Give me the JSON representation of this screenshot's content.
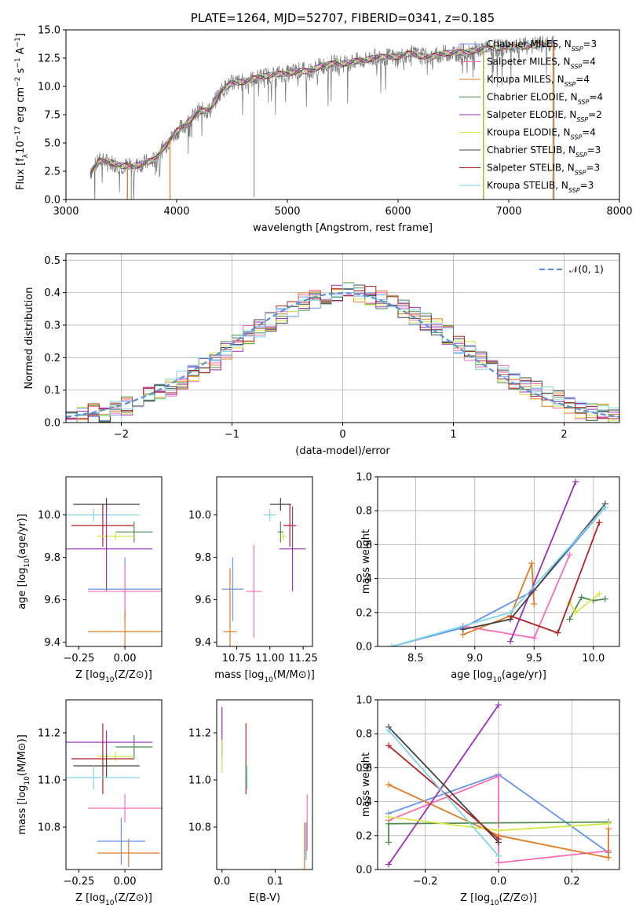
{
  "colors": {
    "Chabrier MILES": "#6495ed",
    "Salpeter MILES": "#ff69b4",
    "Kroupa MILES": "#e07b20",
    "Chabrier ELODIE": "#4f8a4f",
    "Salpeter ELODIE": "#9b30b8",
    "Kroupa ELODIE": "#d4e84a",
    "Chabrier STELIB": "#444444",
    "Salpeter STELIB": "#b22222",
    "Kroupa STELIB": "#7fd4e6"
  },
  "chart_data": [
    {
      "id": "spectrum",
      "type": "line",
      "title": "PLATE=1264, MJD=52707, FIBERID=0341, z=0.185",
      "xlabel": "wavelength [Angstrom, rest frame]",
      "ylabel": "Flux [f",
      "xlim": [
        3000,
        8000
      ],
      "ylim": [
        0,
        15
      ],
      "xticks": [
        "3000",
        "4000",
        "5000",
        "6000",
        "7000",
        "8000"
      ],
      "yticks": [
        "0.0",
        "2.5",
        "5.0",
        "7.5",
        "10.0",
        "12.5",
        "15.0"
      ],
      "legend_placement": "upper right",
      "legend": [
        {
          "label": "Chabrier MILES, N",
          "nssp": "=3",
          "model": "Chabrier MILES"
        },
        {
          "label": "Salpeter MILES, N",
          "nssp": "=4",
          "model": "Salpeter MILES"
        },
        {
          "label": "Kroupa MILES, N",
          "nssp": "=4",
          "model": "Kroupa MILES"
        },
        {
          "label": "Chabrier ELODIE, N",
          "nssp": "=4",
          "model": "Chabrier ELODIE"
        },
        {
          "label": "Salpeter ELODIE, N",
          "nssp": "=2",
          "model": "Salpeter ELODIE"
        },
        {
          "label": "Kroupa ELODIE, N",
          "nssp": "=4",
          "model": "Kroupa ELODIE"
        },
        {
          "label": "Chabrier STELIB, N",
          "nssp": "=3",
          "model": "Chabrier STELIB"
        },
        {
          "label": "Salpeter STELIB, N",
          "nssp": "=3",
          "model": "Salpeter STELIB"
        },
        {
          "label": "Kroupa STELIB, N",
          "nssp": "=3",
          "model": "Kroupa STELIB"
        }
      ],
      "data_color": "#808080",
      "continuum": [
        [
          3220,
          2.4
        ],
        [
          3300,
          3.4
        ],
        [
          3400,
          3.3
        ],
        [
          3500,
          3.0
        ],
        [
          3600,
          2.9
        ],
        [
          3700,
          3.2
        ],
        [
          3800,
          3.5
        ],
        [
          3900,
          4.8
        ],
        [
          4000,
          6.0
        ],
        [
          4100,
          6.8
        ],
        [
          4200,
          7.8
        ],
        [
          4300,
          7.9
        ],
        [
          4400,
          9.6
        ],
        [
          4500,
          10.3
        ],
        [
          4600,
          10.4
        ],
        [
          4700,
          10.7
        ],
        [
          4800,
          10.9
        ],
        [
          4900,
          11.1
        ],
        [
          5000,
          11.1
        ],
        [
          5100,
          11.4
        ],
        [
          5200,
          11.3
        ],
        [
          5300,
          11.8
        ],
        [
          5400,
          12.0
        ],
        [
          5500,
          12.0
        ],
        [
          5600,
          12.2
        ],
        [
          5700,
          12.3
        ],
        [
          5800,
          12.6
        ],
        [
          5900,
          12.6
        ],
        [
          6000,
          12.6
        ],
        [
          6100,
          12.9
        ],
        [
          6200,
          12.7
        ],
        [
          6300,
          12.6
        ],
        [
          6400,
          12.9
        ],
        [
          6500,
          13.0
        ],
        [
          6600,
          13.0
        ],
        [
          6700,
          13.2
        ],
        [
          6800,
          13.3
        ],
        [
          6900,
          13.4
        ],
        [
          7000,
          13.5
        ],
        [
          7100,
          13.5
        ],
        [
          7200,
          13.6
        ],
        [
          7300,
          13.7
        ],
        [
          7420,
          13.8
        ]
      ],
      "spikes": [
        [
          3555,
          0
        ],
        [
          3590,
          0
        ],
        [
          3940,
          0
        ],
        [
          4700,
          0.2
        ],
        [
          6770,
          0
        ],
        [
          7410,
          0
        ]
      ]
    },
    {
      "id": "residuals",
      "type": "histogram",
      "xlabel": "(data-model)/error",
      "ylabel": "Normed distribution",
      "xlim": [
        -2.5,
        2.5
      ],
      "ylim": [
        0,
        0.52
      ],
      "xticks": [
        "−2",
        "−1",
        "0",
        "1",
        "2"
      ],
      "yticks": [
        "0.0",
        "0.1",
        "0.2",
        "0.3",
        "0.4",
        "0.5"
      ],
      "bin_width": 0.1,
      "base": [
        0.02,
        0.02,
        0.03,
        0.03,
        0.04,
        0.05,
        0.07,
        0.08,
        0.1,
        0.11,
        0.13,
        0.15,
        0.17,
        0.19,
        0.22,
        0.24,
        0.27,
        0.29,
        0.31,
        0.33,
        0.35,
        0.37,
        0.38,
        0.39,
        0.4,
        0.41,
        0.4,
        0.39,
        0.38,
        0.37,
        0.35,
        0.33,
        0.31,
        0.29,
        0.27,
        0.24,
        0.22,
        0.19,
        0.17,
        0.15,
        0.13,
        0.11,
        0.1,
        0.08,
        0.07,
        0.05,
        0.04,
        0.03,
        0.03,
        0.02
      ],
      "gaussian_label": "N(0,1)",
      "gaussian_color": "#5b8fd6",
      "legend_placement": "upper right"
    },
    {
      "id": "age_vs_Z",
      "type": "errorbar",
      "xlabel": "Z [log",
      "ylabel": "age  [log",
      "xlim": [
        -0.32,
        0.2
      ],
      "ylim": [
        9.38,
        10.18
      ],
      "xticks": [
        "−0.25",
        "0.00"
      ],
      "yticks": [
        "9.4",
        "9.6",
        "9.8",
        "10.0"
      ],
      "points": [
        {
          "model": "Chabrier STELIB",
          "x": -0.1,
          "xerr": 0.18,
          "y": 10.05,
          "yerr": 0.03
        },
        {
          "model": "Kroupa STELIB",
          "x": -0.17,
          "xerr": 0.25,
          "y": 10.0,
          "yerr": 0.03
        },
        {
          "model": "Salpeter STELIB",
          "x": -0.12,
          "xerr": 0.17,
          "y": 9.95,
          "yerr": 0.1
        },
        {
          "model": "Chabrier ELODIE",
          "x": 0.05,
          "xerr": 0.1,
          "y": 9.92,
          "yerr": 0.05
        },
        {
          "model": "Kroupa ELODIE",
          "x": -0.05,
          "xerr": 0.1,
          "y": 9.9,
          "yerr": 0.02
        },
        {
          "model": "Salpeter ELODIE",
          "x": -0.1,
          "xerr": 0.25,
          "y": 9.84,
          "yerr": 0.2
        },
        {
          "model": "Chabrier MILES",
          "x": 0.0,
          "xerr": 0.2,
          "y": 9.65,
          "yerr": 0.15
        },
        {
          "model": "Salpeter MILES",
          "x": 0.0,
          "xerr": 0.2,
          "y": 9.64,
          "yerr": 0.12
        },
        {
          "model": "Kroupa MILES",
          "x": 0.0,
          "xerr": 0.2,
          "y": 9.45,
          "yerr": 0.1
        }
      ]
    },
    {
      "id": "age_vs_mass",
      "type": "errorbar",
      "xlabel": "mass [log",
      "ylabel": "",
      "xlim": [
        10.6,
        11.32
      ],
      "ylim": [
        9.38,
        10.18
      ],
      "xticks": [
        "10.75",
        "11.00",
        "11.25"
      ],
      "yticks": [
        "9.4",
        "9.6",
        "9.8",
        "10.0"
      ],
      "points": [
        {
          "model": "Chabrier STELIB",
          "x": 11.08,
          "xerr": 0.08,
          "y": 10.05,
          "yerr": 0.03
        },
        {
          "model": "Kroupa STELIB",
          "x": 11.0,
          "xerr": 0.05,
          "y": 10.0,
          "yerr": 0.03
        },
        {
          "model": "Salpeter STELIB",
          "x": 11.15,
          "xerr": 0.05,
          "y": 9.95,
          "yerr": 0.1
        },
        {
          "model": "Chabrier ELODIE",
          "x": 11.08,
          "xerr": 0.02,
          "y": 9.92,
          "yerr": 0.05
        },
        {
          "model": "Kroupa ELODIE",
          "x": 11.1,
          "xerr": 0.02,
          "y": 9.9,
          "yerr": 0.02
        },
        {
          "model": "Salpeter ELODIE",
          "x": 11.17,
          "xerr": 0.1,
          "y": 9.84,
          "yerr": 0.2
        },
        {
          "model": "Chabrier MILES",
          "x": 10.72,
          "xerr": 0.08,
          "y": 9.65,
          "yerr": 0.15
        },
        {
          "model": "Salpeter MILES",
          "x": 10.88,
          "xerr": 0.06,
          "y": 9.64,
          "yerr": 0.22
        },
        {
          "model": "Kroupa MILES",
          "x": 10.7,
          "xerr": 0.05,
          "y": 9.45,
          "yerr": 0.3
        }
      ]
    },
    {
      "id": "weight_vs_age",
      "type": "line",
      "xlabel": "age  [log",
      "ylabel": "mass weight",
      "xlim": [
        8.18,
        10.22
      ],
      "ylim": [
        0,
        1
      ],
      "xticks": [
        "8.5",
        "9.0",
        "9.5",
        "10.0"
      ],
      "yticks": [
        "0.0",
        "0.2",
        "0.4",
        "0.6",
        "0.8",
        "1.0"
      ],
      "series": [
        {
          "model": "Chabrier MILES",
          "points": [
            [
              8.3,
              0.0
            ],
            [
              8.9,
              0.11
            ],
            [
              9.5,
              0.33
            ],
            [
              10.1,
              0.82
            ]
          ]
        },
        {
          "model": "Salpeter MILES",
          "points": [
            [
              8.9,
              0.12
            ],
            [
              9.5,
              0.05
            ],
            [
              9.8,
              0.54
            ]
          ]
        },
        {
          "model": "Kroupa MILES",
          "points": [
            [
              8.9,
              0.07
            ],
            [
              9.3,
              0.18
            ],
            [
              9.48,
              0.49
            ],
            [
              9.5,
              0.25
            ]
          ]
        },
        {
          "model": "Chabrier ELODIE",
          "points": [
            [
              9.8,
              0.16
            ],
            [
              9.9,
              0.29
            ],
            [
              10.0,
              0.27
            ],
            [
              10.1,
              0.28
            ]
          ]
        },
        {
          "model": "Salpeter ELODIE",
          "points": [
            [
              9.3,
              0.03
            ],
            [
              9.85,
              0.97
            ]
          ]
        },
        {
          "model": "Kroupa ELODIE",
          "points": [
            [
              9.8,
              0.26
            ],
            [
              9.85,
              0.2
            ],
            [
              10.05,
              0.31
            ]
          ]
        },
        {
          "model": "Chabrier STELIB",
          "points": [
            [
              8.9,
              0.1
            ],
            [
              9.3,
              0.16
            ],
            [
              10.1,
              0.84
            ]
          ]
        },
        {
          "model": "Salpeter STELIB",
          "points": [
            [
              9.3,
              0.18
            ],
            [
              9.7,
              0.08
            ],
            [
              10.05,
              0.73
            ]
          ]
        },
        {
          "model": "Kroupa STELIB",
          "points": [
            [
              8.3,
              0.0
            ],
            [
              9.3,
              0.2
            ],
            [
              10.1,
              0.82
            ]
          ]
        }
      ]
    },
    {
      "id": "mass_vs_Z",
      "type": "errorbar",
      "xlabel": "Z [log",
      "ylabel": "mass [log",
      "xlim": [
        -0.32,
        0.2
      ],
      "ylim": [
        10.62,
        11.34
      ],
      "xticks": [
        "−0.25",
        "0.00"
      ],
      "yticks": [
        "10.8",
        "11.0",
        "11.2"
      ],
      "points": [
        {
          "model": "Salpeter ELODIE",
          "x": -0.1,
          "xerr": 0.25,
          "y": 11.16,
          "yerr": 0.05
        },
        {
          "model": "Chabrier ELODIE",
          "x": 0.05,
          "xerr": 0.1,
          "y": 11.14,
          "yerr": 0.05
        },
        {
          "model": "Kroupa ELODIE",
          "x": -0.05,
          "xerr": 0.1,
          "y": 11.1,
          "yerr": 0.02
        },
        {
          "model": "Salpeter STELIB",
          "x": -0.12,
          "xerr": 0.17,
          "y": 11.09,
          "yerr": 0.15
        },
        {
          "model": "Chabrier STELIB",
          "x": -0.1,
          "xerr": 0.18,
          "y": 11.06,
          "yerr": 0.05
        },
        {
          "model": "Kroupa STELIB",
          "x": -0.17,
          "xerr": 0.25,
          "y": 11.01,
          "yerr": 0.05
        },
        {
          "model": "Salpeter MILES",
          "x": 0.0,
          "xerr": 0.2,
          "y": 10.88,
          "yerr": 0.06
        },
        {
          "model": "Chabrier MILES",
          "x": -0.02,
          "xerr": 0.13,
          "y": 10.74,
          "yerr": 0.1
        },
        {
          "model": "Kroupa MILES",
          "x": 0.02,
          "xerr": 0.17,
          "y": 10.69,
          "yerr": 0.06
        }
      ]
    },
    {
      "id": "mass_vs_EBV",
      "type": "errorbar",
      "xlabel": "E(B-V)",
      "ylabel": "",
      "xlim": [
        -0.01,
        0.17
      ],
      "ylim": [
        10.62,
        11.34
      ],
      "xticks": [
        "0.0",
        "0.1"
      ],
      "yticks": [
        "10.8",
        "11.0",
        "11.2"
      ],
      "points": [
        {
          "model": "Salpeter ELODIE",
          "x": 0.0,
          "xerr": 0.0,
          "y": 11.2,
          "yerr": 0.11
        },
        {
          "model": "Kroupa ELODIE",
          "x": 0.0,
          "xerr": 0.0,
          "y": 11.1,
          "yerr": 0.07
        },
        {
          "model": "Salpeter STELIB",
          "x": 0.045,
          "xerr": 0.0,
          "y": 11.09,
          "yerr": 0.15
        },
        {
          "model": "Chabrier ELODIE",
          "x": 0.045,
          "xerr": 0.0,
          "y": 11.03,
          "yerr": 0.05
        },
        {
          "model": "Kroupa STELIB",
          "x": 0.047,
          "xerr": 0.0,
          "y": 11.01,
          "yerr": 0.05
        },
        {
          "model": "Kroupa MILES",
          "x": 0.155,
          "xerr": 0.0,
          "y": 10.72,
          "yerr": 0.1
        },
        {
          "model": "Salpeter MILES",
          "x": 0.16,
          "xerr": 0.0,
          "y": 10.82,
          "yerr": 0.12
        },
        {
          "model": "Chabrier MILES",
          "x": 0.158,
          "xerr": 0.0,
          "y": 10.74,
          "yerr": 0.08
        }
      ]
    },
    {
      "id": "weight_vs_Z",
      "type": "line",
      "xlabel": "Z [log",
      "ylabel": "mass weight",
      "xlim": [
        -0.33,
        0.33
      ],
      "ylim": [
        0,
        1
      ],
      "xticks": [
        "−0.2",
        "0.0",
        "0.2"
      ],
      "yticks": [
        "0.0",
        "0.2",
        "0.4",
        "0.6",
        "0.8",
        "1.0"
      ],
      "series": [
        {
          "model": "Chabrier MILES",
          "points": [
            [
              -0.3,
              0.33
            ],
            [
              0.0,
              0.56
            ],
            [
              0.3,
              0.1
            ]
          ]
        },
        {
          "model": "Salpeter MILES",
          "points": [
            [
              -0.3,
              0.29
            ],
            [
              0.0,
              0.55
            ],
            [
              0.0,
              0.04
            ],
            [
              0.3,
              0.11
            ]
          ]
        },
        {
          "model": "Kroupa MILES",
          "points": [
            [
              -0.3,
              0.5
            ],
            [
              0.0,
              0.2
            ],
            [
              0.3,
              0.07
            ],
            [
              0.3,
              0.24
            ]
          ]
        },
        {
          "model": "Chabrier ELODIE",
          "points": [
            [
              -0.3,
              0.16
            ],
            [
              -0.3,
              0.27
            ],
            [
              0.3,
              0.28
            ]
          ]
        },
        {
          "model": "Salpeter ELODIE",
          "points": [
            [
              -0.3,
              0.03
            ],
            [
              0.0,
              0.97
            ]
          ]
        },
        {
          "model": "Kroupa ELODIE",
          "points": [
            [
              -0.3,
              0.31
            ],
            [
              0.0,
              0.23
            ],
            [
              0.3,
              0.27
            ]
          ]
        },
        {
          "model": "Chabrier STELIB",
          "points": [
            [
              -0.3,
              0.84
            ],
            [
              0.0,
              0.16
            ]
          ]
        },
        {
          "model": "Salpeter STELIB",
          "points": [
            [
              -0.3,
              0.73
            ],
            [
              0.0,
              0.18
            ]
          ]
        },
        {
          "model": "Kroupa STELIB",
          "points": [
            [
              -0.3,
              0.82
            ],
            [
              0.0,
              0.08
            ]
          ]
        }
      ]
    }
  ]
}
